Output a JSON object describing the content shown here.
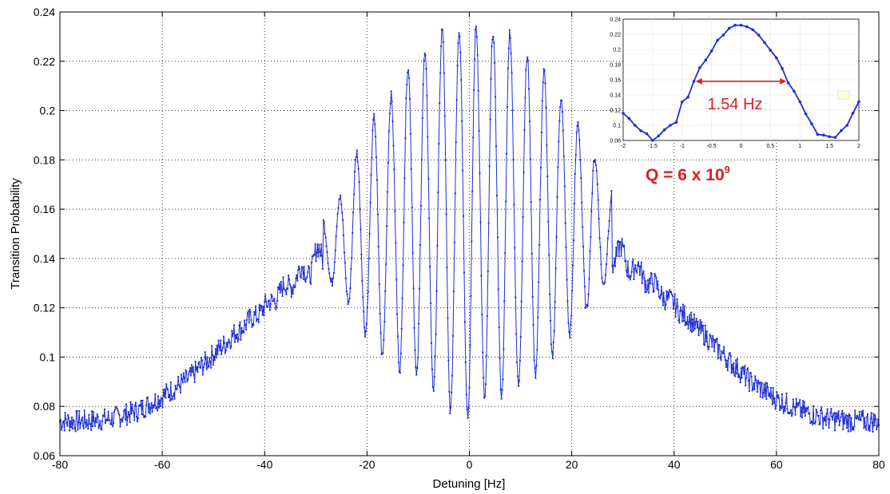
{
  "chart_data": [
    {
      "type": "line",
      "xlabel": "Detuning [Hz]",
      "ylabel": "Transition Probability",
      "xlim": [
        -80,
        80
      ],
      "ylim": [
        0.06,
        0.24
      ],
      "xticks": [
        -80,
        -60,
        -40,
        -20,
        0,
        20,
        40,
        60,
        80
      ],
      "yticks": [
        0.06,
        0.08,
        0.1,
        0.12,
        0.14,
        0.16,
        0.18,
        0.2,
        0.22,
        0.24
      ],
      "grid": true,
      "series_color": "#1f2fd0",
      "series": [
        {
          "envelope": {
            "x": [
              -80,
              -75,
              -70,
              -65,
              -60,
              -55,
              -50,
              -45,
              -40,
              -35,
              -30,
              -25,
              -20,
              -15,
              -10,
              -5,
              0,
              5,
              10,
              15,
              20,
              25,
              30,
              35,
              40,
              45,
              50,
              55,
              60,
              65,
              70,
              75,
              80
            ],
            "y": [
              0.074,
              0.074,
              0.075,
              0.078,
              0.084,
              0.091,
              0.101,
              0.111,
              0.12,
              0.13,
              0.139,
              0.148,
              0.156,
              0.156,
              0.156,
              0.156,
              0.156,
              0.156,
              0.156,
              0.156,
              0.155,
              0.148,
              0.14,
              0.131,
              0.121,
              0.111,
              0.1,
              0.09,
              0.083,
              0.078,
              0.075,
              0.074,
              0.074
            ]
          },
          "fringe_maxima": {
            "x": [
              -28.6,
              -25.3,
              -22.0,
              -18.6,
              -15.3,
              -12.0,
              -8.7,
              -5.3,
              -2.0,
              1.3,
              4.6,
              7.9,
              11.3,
              14.6,
              17.9,
              21.2,
              24.5,
              27.9
            ],
            "y": [
              0.155,
              0.165,
              0.183,
              0.197,
              0.206,
              0.218,
              0.223,
              0.233,
              0.233,
              0.234,
              0.232,
              0.232,
              0.223,
              0.216,
              0.205,
              0.195,
              0.181,
              0.166
            ]
          },
          "fringe_minima": {
            "x": [
              -26.9,
              -23.6,
              -20.3,
              -17.0,
              -13.6,
              -10.3,
              -7.0,
              -3.7,
              -0.3,
              3.0,
              6.3,
              9.6,
              12.9,
              16.2,
              19.6,
              22.9,
              26.2
            ],
            "y": [
              0.13,
              0.122,
              0.11,
              0.1,
              0.095,
              0.092,
              0.087,
              0.078,
              0.076,
              0.083,
              0.084,
              0.088,
              0.093,
              0.1,
              0.109,
              0.119,
              0.129
            ]
          }
        }
      ]
    },
    {
      "type": "line",
      "role": "inset",
      "xlim": [
        -2,
        2
      ],
      "ylim": [
        0.08,
        0.24
      ],
      "xticks": [
        -2,
        -1.5,
        -1,
        -0.5,
        0,
        0.5,
        1,
        1.5,
        2
      ],
      "xtick_labels": [
        "-2",
        "-1.5",
        "-1",
        "-0.5",
        "0",
        "0.5",
        "1",
        "1.5",
        "2"
      ],
      "yticks": [
        0.08,
        0.1,
        0.12,
        0.14,
        0.16,
        0.18,
        0.2,
        0.22,
        0.24
      ],
      "ytick_labels": [
        "0.08",
        "0.1",
        "0.12",
        "0.14",
        "0.16",
        "0.18",
        "0.2",
        "0.22",
        "0.24"
      ],
      "x": [
        -2.0,
        -1.9,
        -1.8,
        -1.7,
        -1.6,
        -1.5,
        -1.4,
        -1.3,
        -1.2,
        -1.1,
        -1.0,
        -0.9,
        -0.8,
        -0.7,
        -0.6,
        -0.5,
        -0.4,
        -0.3,
        -0.2,
        -0.1,
        0.0,
        0.1,
        0.2,
        0.3,
        0.4,
        0.5,
        0.6,
        0.7,
        0.8,
        0.9,
        1.0,
        1.1,
        1.2,
        1.3,
        1.4,
        1.5,
        1.6,
        1.7,
        1.8,
        1.9,
        2.0
      ],
      "y": [
        0.116,
        0.109,
        0.1,
        0.093,
        0.089,
        0.08,
        0.086,
        0.094,
        0.1,
        0.104,
        0.131,
        0.137,
        0.158,
        0.176,
        0.186,
        0.198,
        0.212,
        0.219,
        0.228,
        0.232,
        0.232,
        0.23,
        0.226,
        0.219,
        0.209,
        0.199,
        0.189,
        0.175,
        0.156,
        0.145,
        0.131,
        0.115,
        0.102,
        0.088,
        0.087,
        0.085,
        0.084,
        0.093,
        0.1,
        0.116,
        0.131
      ],
      "fwhm_arrow_x": [
        -0.77,
        0.77
      ],
      "fwhm_arrow_y": 0.158,
      "annotation": "1.54 Hz",
      "legend_entries": [
        "",
        ""
      ]
    }
  ],
  "q_label": {
    "prefix": "Q = 6 x 10",
    "exponent": "9"
  }
}
